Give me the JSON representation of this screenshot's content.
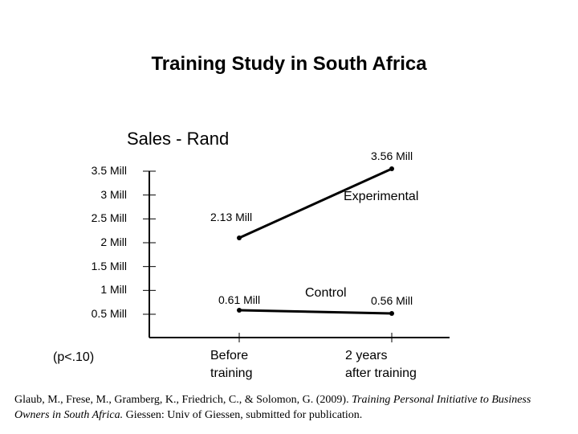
{
  "chart_data": {
    "type": "line",
    "title": "Training Study in South Africa",
    "ylabel": "Sales - Rand",
    "xlabel": "",
    "categories": [
      "Before training",
      "2 years after training"
    ],
    "y_ticks": [
      "0.5 Mill",
      "1 Mill",
      "1.5 Mill",
      "2 Mill",
      "2.5 Mill",
      "3 Mill",
      "3.5 Mill"
    ],
    "y_tick_values": [
      0.5,
      1.0,
      1.5,
      2.0,
      2.5,
      3.0,
      3.5
    ],
    "ylim": [
      0.5,
      3.5
    ],
    "grid": false,
    "series": [
      {
        "name": "Experimental",
        "values": [
          2.13,
          3.56
        ],
        "value_labels": [
          "2.13 Mill",
          "3.56 Mill"
        ]
      },
      {
        "name": "Control",
        "values": [
          0.61,
          0.56
        ],
        "value_labels": [
          "0.61 Mill",
          "0.56 Mill"
        ]
      }
    ],
    "annotation": "(p<.10)"
  },
  "citation": {
    "authors": "Glaub, M., Frese, M., Gramberg, K., Friedrich, C., & Solomon, G. (2009). ",
    "work_title": "Training Personal Initiative to Business Owners in South Africa.",
    "rest": " Giessen: Univ of Giessen, submitted for publication."
  },
  "colors": {
    "line": "#000000",
    "background": "#ffffff"
  }
}
